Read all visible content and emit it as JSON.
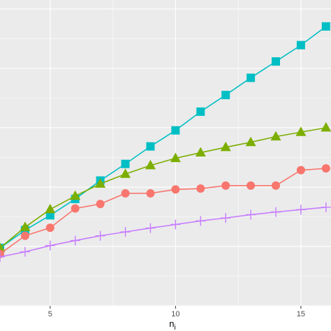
{
  "chart_data": {
    "type": "line",
    "title": "",
    "xlabel": "n",
    "xlabel_subscript": "i",
    "ylabel": "",
    "xlim": [
      3,
      16.2
    ],
    "ylim": [
      0,
      10.3
    ],
    "x_ticks": [
      5,
      10,
      15
    ],
    "x_tick_labels": [
      "5",
      "10",
      "15"
    ],
    "grid": true,
    "panel_background": "#ebebeb",
    "grid_color": "#ffffff",
    "legend": "none",
    "series": [
      {
        "color": "#00bfc4",
        "marker": "square",
        "x": [
          3,
          4,
          5,
          6,
          7,
          8,
          9,
          10,
          11,
          12,
          13,
          14,
          15,
          16
        ],
        "y": [
          1.95,
          2.55,
          3.05,
          3.6,
          4.22,
          4.78,
          5.37,
          5.91,
          6.54,
          7.1,
          7.68,
          8.23,
          8.78,
          9.41
        ]
      },
      {
        "color": "#7cae00",
        "marker": "triangle",
        "x": [
          3,
          4,
          5,
          6,
          7,
          8,
          9,
          10,
          11,
          12,
          13,
          14,
          15,
          16
        ],
        "y": [
          1.95,
          2.65,
          3.25,
          3.7,
          4.11,
          4.44,
          4.73,
          4.97,
          5.16,
          5.34,
          5.51,
          5.7,
          5.85,
          6.0
        ]
      },
      {
        "color": "#f8766d",
        "marker": "circle",
        "x": [
          3,
          4,
          5,
          6,
          7,
          8,
          9,
          10,
          11,
          12,
          13,
          14,
          15,
          16
        ],
        "y": [
          1.75,
          2.36,
          2.63,
          3.28,
          3.43,
          3.79,
          3.79,
          3.92,
          3.95,
          4.05,
          4.05,
          4.05,
          4.57,
          4.63
        ]
      },
      {
        "color": "#c77cff",
        "marker": "plus",
        "x": [
          3,
          4,
          5,
          6,
          7,
          8,
          9,
          10,
          11,
          12,
          13,
          14,
          15,
          16
        ],
        "y": [
          1.65,
          1.82,
          2.03,
          2.2,
          2.36,
          2.49,
          2.62,
          2.74,
          2.86,
          2.96,
          3.07,
          3.16,
          3.24,
          3.32
        ]
      }
    ]
  }
}
